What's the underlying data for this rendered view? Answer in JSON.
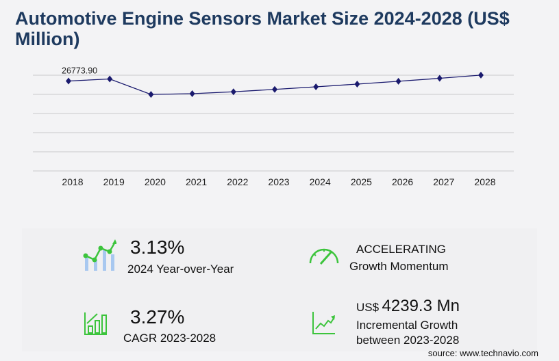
{
  "title": "Automotive Engine Sensors Market Size 2024-2028 (US$ Million)",
  "chart_data": {
    "type": "line",
    "categories": [
      "2018",
      "2019",
      "2020",
      "2021",
      "2022",
      "2023",
      "2024",
      "2025",
      "2026",
      "2027",
      "2028"
    ],
    "values": [
      26773.9,
      27380,
      22780,
      23000,
      23570,
      24280,
      25040,
      25850,
      26690,
      27580,
      28519
    ],
    "data_labels": [
      "26773.90"
    ],
    "ylim": [
      0,
      28500
    ],
    "grid": true,
    "line_color": "#1a1a6e"
  },
  "stats": {
    "yoy_value": "3.13%",
    "yoy_label": "2024 Year-over-Year",
    "momentum_value": "ACCELERATING",
    "momentum_label": "Growth Momentum",
    "cagr_value": "3.27%",
    "cagr_label": "CAGR 2023-2028",
    "incr_prefix": "US$",
    "incr_value": "4239.3 Mn",
    "incr_label1": "Incremental Growth",
    "incr_label2": "between 2023-2028"
  },
  "source": "source: www.technavio.com",
  "accent": "#3cc43c"
}
